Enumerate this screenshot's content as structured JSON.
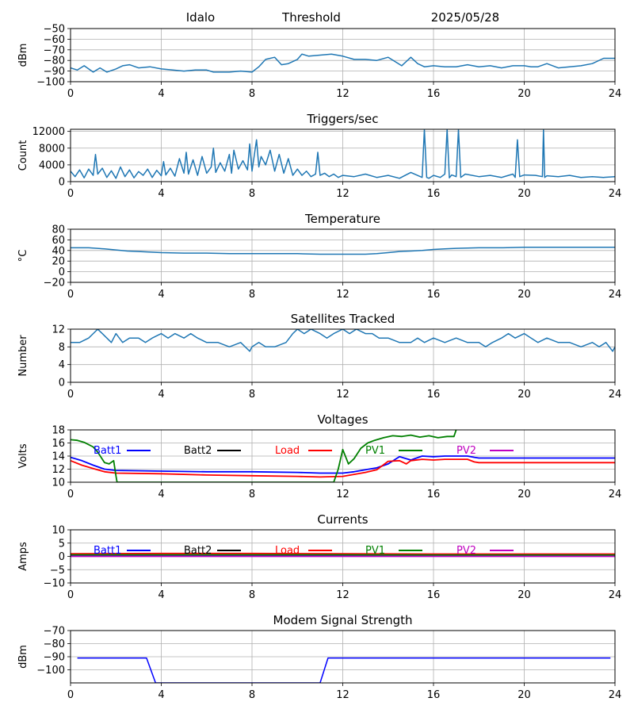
{
  "header": {
    "station": "Idalo",
    "mode": "Threshold",
    "date": "2025/05/28"
  },
  "chart_data": [
    {
      "type": "line",
      "title": "",
      "ylabel": "dBm",
      "xlim": [
        0,
        24
      ],
      "ylim": [
        -100,
        -50
      ],
      "xticks": [
        0,
        4,
        8,
        12,
        16,
        20,
        24
      ],
      "yticks": [
        -100,
        -90,
        -80,
        -70,
        -60,
        -50
      ],
      "grid": true,
      "series": [
        {
          "color": "#1f77b4",
          "x": [
            0,
            0.3,
            0.6,
            1,
            1.3,
            1.6,
            2,
            2.3,
            2.6,
            3,
            3.5,
            4,
            4.5,
            5,
            5.5,
            6,
            6.3,
            7,
            7.5,
            8,
            8.3,
            8.6,
            9,
            9.3,
            9.6,
            10,
            10.2,
            10.5,
            11,
            11.5,
            12,
            12.5,
            13,
            13.5,
            14,
            14.3,
            14.6,
            15,
            15.3,
            15.6,
            16,
            16.5,
            17,
            17.5,
            18,
            18.5,
            19,
            19.5,
            20,
            20.3,
            20.6,
            21,
            21.5,
            22,
            22.5,
            23,
            23.5,
            24
          ],
          "values": [
            -87,
            -89,
            -85,
            -91,
            -87,
            -91,
            -88,
            -85,
            -84,
            -87,
            -86,
            -88,
            -89,
            -90,
            -89,
            -89,
            -91,
            -91,
            -90,
            -91,
            -86,
            -79,
            -77,
            -84,
            -83,
            -79,
            -74,
            -76,
            -75,
            -74,
            -76,
            -79,
            -79,
            -80,
            -77,
            -81,
            -85,
            -77,
            -83,
            -86,
            -85,
            -86,
            -86,
            -84,
            -86,
            -85,
            -87,
            -85,
            -85,
            -86,
            -86,
            -83,
            -87,
            -86,
            -85,
            -83,
            -78,
            -78
          ]
        }
      ]
    },
    {
      "type": "line",
      "title": "Triggers/sec",
      "ylabel": "Count",
      "xlim": [
        0,
        24
      ],
      "ylim": [
        0,
        12500
      ],
      "xticks": [
        0,
        4,
        8,
        12,
        16,
        20,
        24
      ],
      "yticks": [
        0,
        4000,
        8000,
        12000
      ],
      "grid": true,
      "series": [
        {
          "color": "#1f77b4",
          "x": [
            0,
            0.2,
            0.4,
            0.6,
            0.8,
            1,
            1.1,
            1.2,
            1.4,
            1.6,
            1.8,
            2,
            2.2,
            2.4,
            2.6,
            2.8,
            3,
            3.2,
            3.4,
            3.6,
            3.8,
            4,
            4.1,
            4.2,
            4.4,
            4.6,
            4.8,
            5,
            5.1,
            5.2,
            5.4,
            5.6,
            5.8,
            6,
            6.2,
            6.3,
            6.4,
            6.6,
            6.8,
            7,
            7.1,
            7.2,
            7.4,
            7.6,
            7.8,
            7.9,
            8,
            8.2,
            8.3,
            8.4,
            8.6,
            8.8,
            9,
            9.2,
            9.4,
            9.6,
            9.8,
            10,
            10.2,
            10.4,
            10.6,
            10.8,
            10.9,
            11,
            11.2,
            11.4,
            11.6,
            11.8,
            12,
            12.5,
            13,
            13.5,
            14,
            14.5,
            15,
            15.5,
            15.6,
            15.7,
            15.8,
            16,
            16.3,
            16.5,
            16.6,
            16.7,
            16.8,
            17,
            17.1,
            17.2,
            17.4,
            18,
            18.5,
            19,
            19.5,
            19.6,
            19.7,
            19.8,
            20,
            20.5,
            20.8,
            20.85,
            20.9,
            21,
            21.5,
            22,
            22.5,
            23,
            23.5,
            24
          ],
          "values": [
            2500,
            1200,
            2800,
            900,
            3000,
            1500,
            6500,
            1800,
            3200,
            1000,
            2600,
            800,
            3500,
            1200,
            2800,
            900,
            2400,
            1500,
            3000,
            1000,
            2700,
            1400,
            4800,
            1600,
            3200,
            1300,
            5500,
            2000,
            7000,
            1800,
            5200,
            1500,
            6000,
            2000,
            3500,
            8000,
            2200,
            4500,
            2500,
            6500,
            2000,
            7500,
            3000,
            5000,
            2800,
            9000,
            2500,
            10000,
            3500,
            6000,
            4000,
            7500,
            2500,
            6500,
            2000,
            5500,
            1500,
            3000,
            1500,
            2500,
            1200,
            1800,
            7000,
            1500,
            2000,
            1200,
            1800,
            1000,
            1500,
            1200,
            1800,
            1000,
            1500,
            800,
            2200,
            1000,
            12500,
            1000,
            800,
            1500,
            1000,
            1800,
            12500,
            900,
            1600,
            1200,
            12500,
            1000,
            1800,
            1200,
            1500,
            1000,
            1800,
            1000,
            10000,
            1200,
            1600,
            1500,
            1200,
            12500,
            1000,
            1400,
            1200,
            1500,
            1000,
            1200,
            1000,
            1200
          ]
        }
      ]
    },
    {
      "type": "line",
      "title": "Temperature",
      "ylabel": "°C",
      "xlim": [
        0,
        24
      ],
      "ylim": [
        -20,
        80
      ],
      "xticks": [
        0,
        4,
        8,
        12,
        16,
        20,
        24
      ],
      "yticks": [
        -20,
        0,
        20,
        40,
        60,
        80
      ],
      "grid": true,
      "series": [
        {
          "color": "#1f77b4",
          "x": [
            0,
            0.8,
            1.5,
            2,
            2.5,
            3,
            4,
            5,
            6,
            7,
            8,
            9,
            10,
            11,
            12,
            13,
            13.5,
            14,
            14.5,
            15,
            15.5,
            16,
            16.5,
            17,
            18,
            19,
            20,
            21,
            22,
            23,
            24
          ],
          "values": [
            45,
            45,
            43,
            41,
            39,
            38,
            36,
            35,
            35,
            34,
            34,
            34,
            34,
            33,
            33,
            33,
            34,
            36,
            38,
            39,
            40,
            42,
            43,
            44,
            45,
            45,
            46,
            46,
            46,
            46,
            46
          ]
        }
      ]
    },
    {
      "type": "line",
      "title": "Satellites Tracked",
      "ylabel": "Number",
      "xlim": [
        0,
        24
      ],
      "ylim": [
        0,
        12
      ],
      "xticks": [
        0,
        4,
        8,
        12,
        16,
        20,
        24
      ],
      "yticks": [
        0,
        4,
        8,
        12
      ],
      "grid": true,
      "series": [
        {
          "color": "#1f77b4",
          "x": [
            0,
            0.4,
            0.8,
            1,
            1.2,
            1.4,
            1.6,
            1.8,
            2,
            2.3,
            2.6,
            3,
            3.3,
            3.6,
            4,
            4.3,
            4.6,
            5,
            5.3,
            5.6,
            6,
            6.5,
            7,
            7.5,
            7.9,
            8,
            8.3,
            8.6,
            9,
            9.5,
            9.8,
            10,
            10.3,
            10.6,
            11,
            11.3,
            11.6,
            12,
            12.3,
            12.6,
            13,
            13.3,
            13.6,
            14,
            14.5,
            15,
            15.3,
            15.6,
            16,
            16.5,
            17,
            17.5,
            18,
            18.3,
            18.6,
            19,
            19.3,
            19.6,
            20,
            20.3,
            20.6,
            21,
            21.5,
            22,
            22.5,
            23,
            23.3,
            23.6,
            23.9,
            24
          ],
          "values": [
            9,
            9,
            10,
            11,
            12,
            11,
            10,
            9,
            11,
            9,
            10,
            10,
            9,
            10,
            11,
            10,
            11,
            10,
            11,
            10,
            9,
            9,
            8,
            9,
            7,
            8,
            9,
            8,
            8,
            9,
            11,
            12,
            11,
            12,
            11,
            10,
            11,
            12,
            11,
            12,
            11,
            11,
            10,
            10,
            9,
            9,
            10,
            9,
            10,
            9,
            10,
            9,
            9,
            8,
            9,
            10,
            11,
            10,
            11,
            10,
            9,
            10,
            9,
            9,
            8,
            9,
            8,
            9,
            7,
            8
          ]
        }
      ]
    },
    {
      "type": "line",
      "title": "Voltages",
      "ylabel": "Volts",
      "xlim": [
        0,
        24
      ],
      "ylim": [
        10,
        18
      ],
      "xticks": [
        0,
        4,
        8,
        12,
        16,
        20,
        24
      ],
      "yticks": [
        10,
        12,
        14,
        16,
        18
      ],
      "grid": true,
      "legend": "top",
      "series": [
        {
          "name": "Batt1",
          "color": "#0000ff",
          "x": [
            0,
            0.5,
            1,
            1.5,
            2,
            4,
            6,
            8,
            10,
            11,
            12,
            12.5,
            13,
            13.5,
            14,
            14.5,
            15,
            15.5,
            16,
            16.5,
            17,
            17.5,
            17.8,
            18,
            19,
            20,
            21,
            22,
            23,
            24
          ],
          "values": [
            13.8,
            13.3,
            12.6,
            12.0,
            11.8,
            11.7,
            11.6,
            11.6,
            11.5,
            11.4,
            11.4,
            11.6,
            11.9,
            12.2,
            12.8,
            13.9,
            13.4,
            14.0,
            13.9,
            14.0,
            14.0,
            14.0,
            13.8,
            13.7,
            13.7,
            13.7,
            13.7,
            13.7,
            13.7,
            13.7
          ]
        },
        {
          "name": "Batt2",
          "color": "#000000",
          "x": [],
          "values": []
        },
        {
          "name": "Load",
          "color": "#ff0000",
          "x": [
            0,
            0.5,
            1,
            1.5,
            2,
            4,
            6,
            8,
            10,
            11,
            12,
            12.5,
            13,
            13.5,
            14,
            14.5,
            14.8,
            15,
            15.5,
            16,
            16.5,
            17,
            17.5,
            17.8,
            18,
            19,
            20,
            21,
            22,
            23,
            24
          ],
          "values": [
            13.3,
            12.6,
            12.1,
            11.6,
            11.4,
            11.3,
            11.1,
            11.0,
            10.9,
            10.8,
            10.9,
            11.2,
            11.5,
            11.9,
            13.2,
            13.3,
            12.8,
            13.3,
            13.5,
            13.4,
            13.5,
            13.5,
            13.5,
            13.1,
            13.0,
            13.0,
            13.0,
            13.0,
            13.0,
            13.0,
            13.0
          ]
        },
        {
          "name": "PV1",
          "color": "#008000",
          "x": [
            0,
            0.3,
            0.6,
            1,
            1.2,
            1.5,
            1.7,
            1.9,
            2.0,
            2.05,
            11.6,
            11.8,
            12,
            12.25,
            12.5,
            12.8,
            13.1,
            13.4,
            13.8,
            14.2,
            14.6,
            15,
            15.4,
            15.8,
            16.2,
            16.6,
            16.9,
            17.0
          ],
          "values": [
            16.5,
            16.4,
            16.1,
            15.4,
            14.6,
            13.0,
            12.8,
            13.3,
            11.0,
            10.0,
            10.0,
            12.0,
            15.0,
            12.8,
            13.6,
            15.2,
            16.0,
            16.4,
            16.8,
            17.1,
            17.0,
            17.2,
            16.9,
            17.1,
            16.8,
            17.0,
            17.0,
            18.0
          ]
        },
        {
          "name": "PV2",
          "color": "#bf00bf",
          "x": [],
          "values": []
        }
      ]
    },
    {
      "type": "line",
      "title": "Currents",
      "ylabel": "Amps",
      "xlim": [
        0,
        24
      ],
      "ylim": [
        -10,
        10
      ],
      "xticks": [
        0,
        4,
        8,
        12,
        16,
        20,
        24
      ],
      "yticks": [
        -10,
        -5,
        0,
        5,
        10
      ],
      "grid": true,
      "legend": "top",
      "series": [
        {
          "name": "Batt1",
          "color": "#0000ff",
          "x": [
            0,
            4,
            8,
            12,
            16,
            20,
            24
          ],
          "values": [
            0.3,
            0.3,
            0.3,
            0.3,
            0.2,
            0.2,
            0.2
          ]
        },
        {
          "name": "Batt2",
          "color": "#000000",
          "x": [],
          "values": []
        },
        {
          "name": "Load",
          "color": "#ff0000",
          "x": [
            0,
            4,
            8,
            12,
            16,
            20,
            24
          ],
          "values": [
            1.0,
            1.1,
            1.1,
            1.0,
            0.9,
            0.9,
            0.9
          ]
        },
        {
          "name": "PV1",
          "color": "#008000",
          "x": [
            0,
            4,
            8,
            12,
            16,
            20,
            24
          ],
          "values": [
            0.6,
            0.6,
            0.6,
            0.6,
            0.5,
            0.5,
            0.5
          ]
        },
        {
          "name": "PV2",
          "color": "#bf00bf",
          "x": [
            0,
            4,
            8,
            12,
            16,
            20,
            24
          ],
          "values": [
            0,
            0,
            0,
            0,
            0,
            0,
            0
          ]
        }
      ]
    },
    {
      "type": "line",
      "title": "Modem Signal Strength",
      "ylabel": "dBm",
      "xlim": [
        0,
        24
      ],
      "ylim": [
        -110,
        -70
      ],
      "xticks": [
        0,
        4,
        8,
        12,
        16,
        20,
        24
      ],
      "yticks": [
        -100,
        -90,
        -80,
        -70
      ],
      "grid": true,
      "series": [
        {
          "color": "#0000ff",
          "x": [
            0.3,
            3.35,
            3.75,
            11.0,
            11.35,
            23.8
          ],
          "values": [
            -91,
            -91,
            -110,
            -110,
            -91,
            -91
          ]
        }
      ]
    }
  ]
}
